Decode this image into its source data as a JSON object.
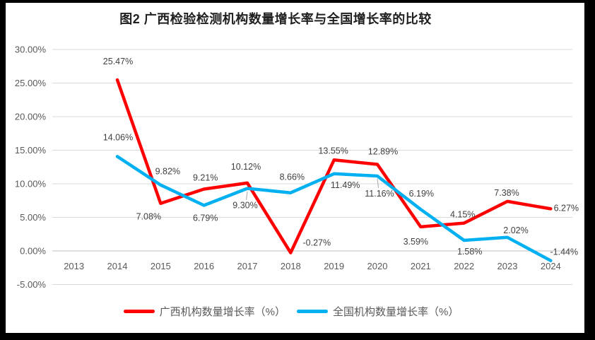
{
  "chart": {
    "title": "图2 广西检验检测机构数量增长率与全国增长率的比较"
  },
  "colors": {
    "guangxi_line": "#ff0000",
    "national_line": "#00b0f0",
    "gridline": "#d9d9d9",
    "zero_axis_line": "#bfbfbf",
    "axis_text": "#595959",
    "data_label_text": "#404040",
    "leader_line": "#a6a6a6",
    "frame_border": "#000000",
    "background": "#ffffff"
  },
  "chart_data": {
    "type": "line",
    "title": "图2 广西检验检测机构数量增长率与全国增长率的比较",
    "categories": [
      "2013",
      "2014",
      "2015",
      "2016",
      "2017",
      "2018",
      "2019",
      "2020",
      "2021",
      "2022",
      "2023",
      "2024"
    ],
    "series": [
      {
        "name": "广西机构数量增长率（%）",
        "color": "#ff0000",
        "values": [
          null,
          25.47,
          7.08,
          9.21,
          10.12,
          -0.27,
          13.55,
          12.89,
          3.59,
          4.15,
          7.38,
          6.27
        ],
        "point_labels": [
          null,
          "25.47%",
          "7.08%",
          "9.21%",
          "10.12%",
          "-0.27%",
          "13.55%",
          "12.89%",
          "3.59%",
          "4.15%",
          "7.38%",
          "6.27%"
        ]
      },
      {
        "name": "全国机构数量增长率（%）",
        "color": "#00b0f0",
        "values": [
          null,
          14.06,
          9.82,
          6.79,
          9.3,
          8.66,
          11.49,
          11.16,
          6.19,
          1.58,
          2.02,
          -1.44
        ],
        "point_labels": [
          null,
          "14.06%",
          "9.82%",
          "6.79%",
          "9.30%",
          "8.66%",
          "11.49%",
          "11.16%",
          "6.19%",
          "1.58%",
          "2.02%",
          "-1.44%"
        ]
      }
    ],
    "yticks": [
      30,
      25,
      20,
      15,
      10,
      5,
      0,
      -5
    ],
    "ytick_labels": [
      "30.00%",
      "25.00%",
      "20.00%",
      "15.00%",
      "10.00%",
      "5.00%",
      "0.00%",
      "-5.00%"
    ],
    "ylim": [
      -5,
      30
    ],
    "xlabel": "",
    "ylabel": "",
    "grid": "horizontal",
    "legend_position": "bottom"
  },
  "legend": {
    "items": [
      {
        "label": "广西机构数量增长率（%）",
        "color": "#ff0000"
      },
      {
        "label": "全国机构数量增长率（%）",
        "color": "#00b0f0"
      }
    ]
  }
}
